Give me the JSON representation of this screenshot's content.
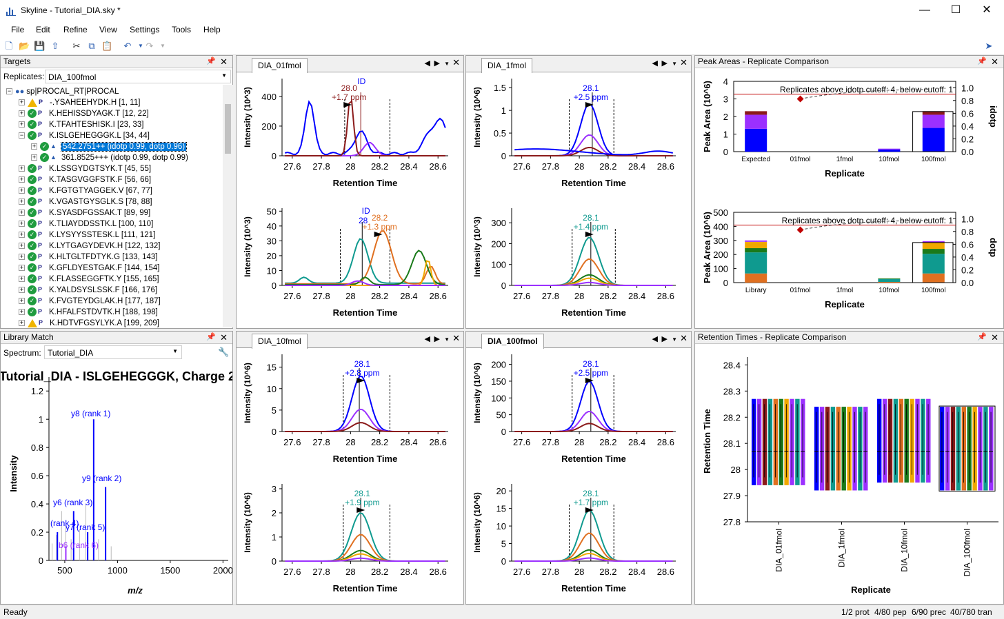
{
  "window": {
    "title": "Skyline - Tutorial_DIA.sky *"
  },
  "menu": [
    "File",
    "Edit",
    "Refine",
    "View",
    "Settings",
    "Tools",
    "Help"
  ],
  "targets": {
    "title": "Targets",
    "replicates_label": "Replicates:",
    "replicate_value": "DIA_100fmol",
    "root": "sp|PROCAL_RT|PROCAL",
    "items": [
      {
        "label": "-.YSAHEEHYDK.H [1, 11]",
        "status": "warn"
      },
      {
        "label": "K.HEHISSDYAGK.T [12, 22]",
        "status": "ok"
      },
      {
        "label": "K.TFAHTESHISK.I [23, 33]",
        "status": "ok"
      },
      {
        "label": "K.ISLGEHEGGGK.L [34, 44]",
        "status": "ok"
      },
      {
        "label": "542.2751++ (idotp 0.99, dotp 0.96)",
        "status": "ok",
        "child": true,
        "selected": true
      },
      {
        "label": "361.8525+++ (idotp 0.99, dotp 0.99)",
        "status": "ok",
        "child": true
      },
      {
        "label": "K.LSSGYDGTSYK.T [45, 55]",
        "status": "ok"
      },
      {
        "label": "K.TASGVGGFSTK.F [56, 66]",
        "status": "ok"
      },
      {
        "label": "K.FGTGTYAGGEK.V [67, 77]",
        "status": "ok"
      },
      {
        "label": "K.VGASTGYSGLK.S [78, 88]",
        "status": "ok"
      },
      {
        "label": "K.SYASDFGSSAK.T [89, 99]",
        "status": "ok"
      },
      {
        "label": "K.TLIAYDDSSTK.L [100, 110]",
        "status": "ok"
      },
      {
        "label": "K.LYSYYSSTESK.L [111, 121]",
        "status": "ok"
      },
      {
        "label": "K.LYTGAGYDEVK.H [122, 132]",
        "status": "ok"
      },
      {
        "label": "K.HLTGLTFDTYK.G [133, 143]",
        "status": "ok"
      },
      {
        "label": "K.GFLDYESTGAK.F [144, 154]",
        "status": "ok"
      },
      {
        "label": "K.FLASSEGGFTK.Y [155, 165]",
        "status": "ok"
      },
      {
        "label": "K.YALDSYSLSSK.F [166, 176]",
        "status": "ok"
      },
      {
        "label": "K.FVGTEYDGLAK.H [177, 187]",
        "status": "ok"
      },
      {
        "label": "K.HFALFSTDVTK.H [188, 198]",
        "status": "ok"
      },
      {
        "label": "K.HDTVFGSYLYK.A [199, 209]",
        "status": "warn"
      }
    ]
  },
  "library": {
    "title": "Library Match",
    "spectrum_label": "Spectrum:",
    "spectrum_value": "Tutorial_DIA",
    "chart_title": "Tutorial_DIA - ISLGEHEGGGK, Charge 2",
    "xlabel": "m/z",
    "ylabel": "Intensity",
    "yticks": [
      "0",
      "0.2",
      "0.4",
      "0.6",
      "0.8",
      "1",
      "1.2"
    ],
    "xticks": [
      "500",
      "1000",
      "1500",
      "2000"
    ],
    "labels": [
      "y8 (rank 1)",
      "y9 (rank 2)",
      "y6 (rank 3)",
      "(rank 4)",
      "y7 (rank 5)",
      "b6 (rank 6)"
    ]
  },
  "chrom": {
    "xlabel": "Retention Time",
    "xticks": [
      "27.6",
      "27.8",
      "28",
      "28.2",
      "28.4",
      "28.6"
    ],
    "tabs": [
      {
        "name": "DIA_01fmol",
        "top": {
          "ylabel": "Intensity (10^3)",
          "yticks": [
            "0",
            "200",
            "400"
          ],
          "ann1": "28.0",
          "ann2": "+1.7 ppm",
          "id": "ID"
        },
        "bottom": {
          "ylabel": "Intensity (10^3)",
          "yticks": [
            "0",
            "10",
            "20",
            "30",
            "40",
            "50"
          ],
          "ann1": "28.2",
          "ann2": "+1.3 ppm",
          "id": "ID",
          "idsub": "28"
        }
      },
      {
        "name": "DIA_1fmol",
        "top": {
          "ylabel": "Intensity (10^6)",
          "yticks": [
            "0",
            "0.5",
            "1",
            "1.5"
          ],
          "ann1": "28.1",
          "ann2": "+2.5 ppm"
        },
        "bottom": {
          "ylabel": "Intensity (10^3)",
          "yticks": [
            "0",
            "100",
            "200",
            "300"
          ],
          "ann1": "28.1",
          "ann2": "+1.4 ppm"
        }
      },
      {
        "name": "DIA_10fmol",
        "top": {
          "ylabel": "Intensity (10^6)",
          "yticks": [
            "0",
            "5",
            "10",
            "15"
          ],
          "ann1": "28.1",
          "ann2": "+2.8 ppm"
        },
        "bottom": {
          "ylabel": "Intensity (10^6)",
          "yticks": [
            "0",
            "1",
            "2",
            "3"
          ],
          "ann1": "28.1",
          "ann2": "+1.9 ppm"
        }
      },
      {
        "name": "DIA_100fmol",
        "top": {
          "ylabel": "Intensity (10^6)",
          "yticks": [
            "0",
            "50",
            "100",
            "150",
            "200"
          ],
          "ann1": "28.1",
          "ann2": "+2.5 ppm"
        },
        "bottom": {
          "ylabel": "Intensity (10^6)",
          "yticks": [
            "0",
            "5",
            "10",
            "15",
            "20"
          ],
          "ann1": "28.1",
          "ann2": "+1.7 ppm"
        }
      }
    ]
  },
  "peak_areas": {
    "title": "Peak Areas - Replicate Comparison",
    "xlabel": "Replicate",
    "top": {
      "ylabel": "Peak Area (10^6)",
      "y2label": "idotp",
      "yticks": [
        "0",
        "1",
        "2",
        "3",
        "4"
      ],
      "y2ticks": [
        "0.0",
        "0.2",
        "0.4",
        "0.6",
        "0.8",
        "1.0"
      ],
      "categories": [
        "Expected",
        "01fmol",
        "1fmol",
        "10fmol",
        "100fmol"
      ],
      "note": "Replicates above idotp cutoff: 4, below cutoff: 1"
    },
    "bottom": {
      "ylabel": "Peak Area (10^6)",
      "y2label": "dotp",
      "yticks": [
        "0",
        "100",
        "200",
        "300",
        "400",
        "500"
      ],
      "y2ticks": [
        "0.0",
        "0.2",
        "0.4",
        "0.6",
        "0.8",
        "1.0"
      ],
      "categories": [
        "Library",
        "01fmol",
        "1fmol",
        "10fmol",
        "100fmol"
      ],
      "note": "Replicates above dotp cutoff: 4, below cutoff: 1"
    }
  },
  "rt": {
    "title": "Retention Times - Replicate Comparison",
    "ylabel": "Retention Time",
    "xlabel": "Replicate",
    "yticks": [
      "27.8",
      "27.9",
      "28",
      "28.1",
      "28.2",
      "28.3",
      "28.4"
    ],
    "categories": [
      "DIA_01fmol",
      "DIA_1fmol",
      "DIA_10fmol",
      "DIA_100fmol"
    ]
  },
  "status": {
    "left": "Ready",
    "prot": "1/2 prot",
    "pep": "4/80 pep",
    "prec": "6/90 prec",
    "tran": "40/780 tran"
  },
  "colors": {
    "blue": "#0000ff",
    "purple": "#9b30ff",
    "maroon": "#8b1a1a",
    "teal": "#0f9a8f",
    "orange": "#e07020",
    "green": "#1a7a1a",
    "gold": "#f0a800"
  }
}
